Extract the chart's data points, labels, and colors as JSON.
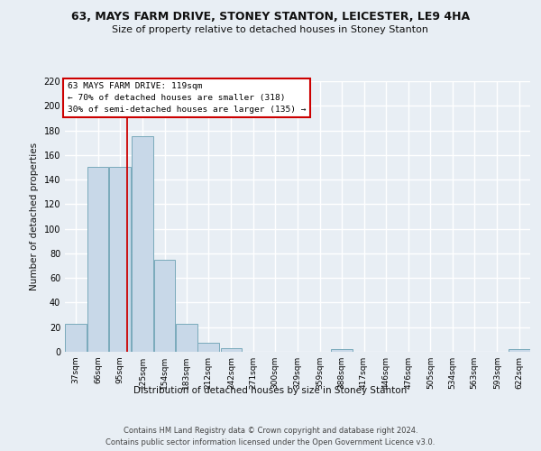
{
  "title1": "63, MAYS FARM DRIVE, STONEY STANTON, LEICESTER, LE9 4HA",
  "title2": "Size of property relative to detached houses in Stoney Stanton",
  "xlabel": "Distribution of detached houses by size in Stoney Stanton",
  "ylabel": "Number of detached properties",
  "bin_edges": [
    37,
    66,
    95,
    125,
    154,
    183,
    212,
    242,
    271,
    300,
    329,
    359,
    388,
    417,
    446,
    476,
    505,
    534,
    563,
    593,
    622
  ],
  "bar_heights": [
    23,
    150,
    150,
    175,
    75,
    23,
    7,
    3,
    0,
    0,
    0,
    0,
    2,
    0,
    0,
    0,
    0,
    0,
    0,
    0,
    2
  ],
  "bar_color": "#c8d8e8",
  "bar_edge_color": "#7aaabb",
  "property_size": 119,
  "red_line_color": "#cc0000",
  "annotation_line1": "63 MAYS FARM DRIVE: 119sqm",
  "annotation_line2": "← 70% of detached houses are smaller (318)",
  "annotation_line3": "30% of semi-detached houses are larger (135) →",
  "annotation_box_color": "#ffffff",
  "annotation_border_color": "#cc0000",
  "ylim": [
    0,
    220
  ],
  "yticks": [
    0,
    20,
    40,
    60,
    80,
    100,
    120,
    140,
    160,
    180,
    200,
    220
  ],
  "background_color": "#e8eef4",
  "grid_color": "#ffffff",
  "fig_background": "#e8eef4",
  "footer1": "Contains HM Land Registry data © Crown copyright and database right 2024.",
  "footer2": "Contains public sector information licensed under the Open Government Licence v3.0."
}
